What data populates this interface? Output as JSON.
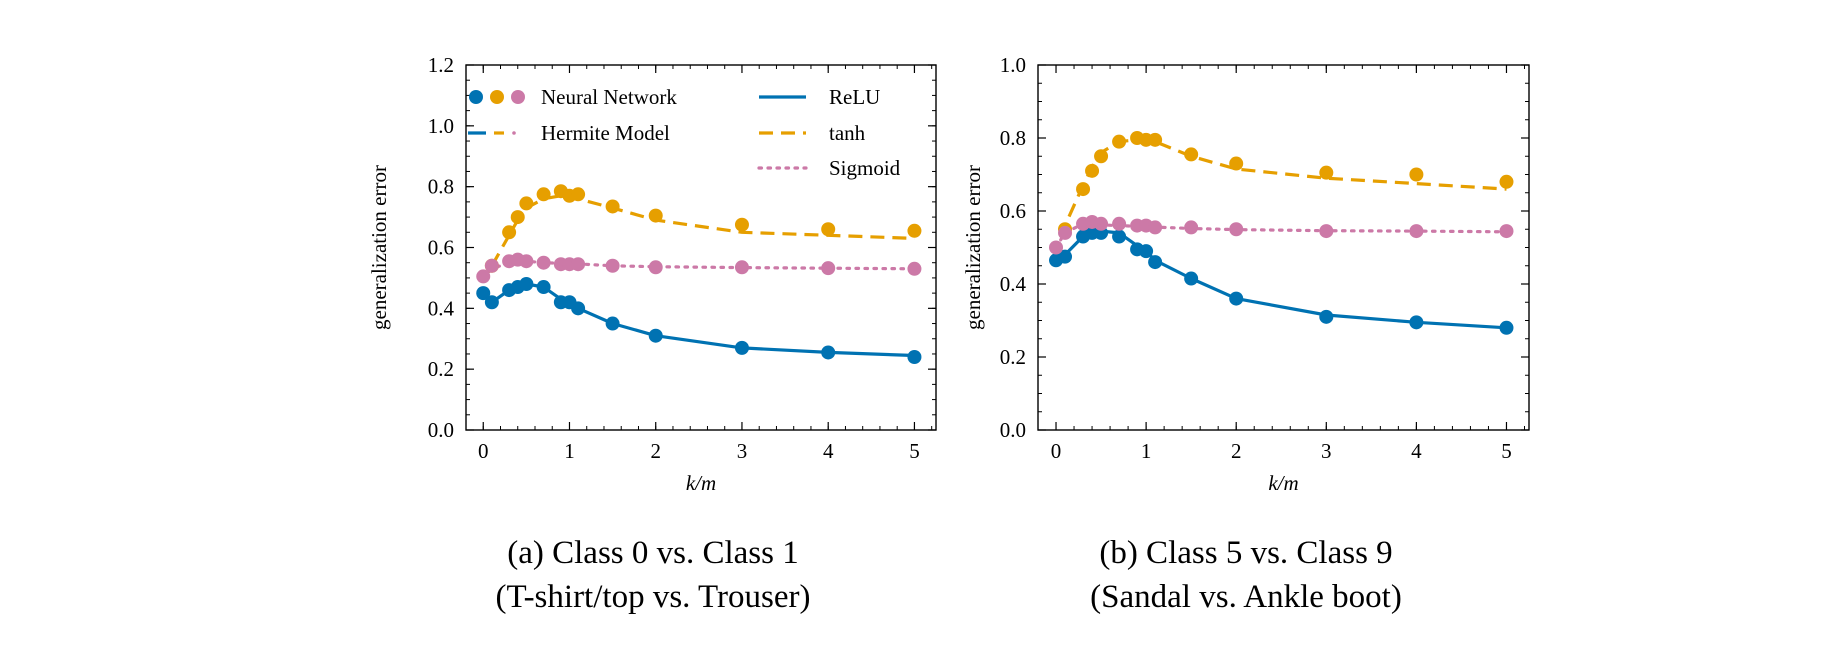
{
  "chart_data": [
    {
      "type": "line",
      "caption": [
        "(a) Class 0 vs. Class 1",
        "(T-shirt/top vs. Trouser)"
      ],
      "xlabel": "k/m",
      "ylabel": "generalization error",
      "xlim": [
        -0.2,
        5.25
      ],
      "ylim": [
        0.0,
        1.2
      ],
      "xticks": [
        0,
        1,
        2,
        3,
        4,
        5
      ],
      "yticks": [
        0.0,
        0.2,
        0.4,
        0.6,
        0.8,
        1.0,
        1.2
      ],
      "ytick_labels": [
        "0.0",
        "0.2",
        "0.4",
        "0.6",
        "0.8",
        "1.0",
        "1.2"
      ],
      "grid": false,
      "legend": {
        "placement": "top",
        "entries": [
          {
            "label": "Neural Network",
            "kind": "markers"
          },
          {
            "label": "Hermite Model",
            "kind": "dashdot"
          },
          {
            "label": "ReLU",
            "kind": "solid",
            "color": "#0072b2"
          },
          {
            "label": "tanh",
            "kind": "dashed",
            "color": "#e69f00"
          },
          {
            "label": "Sigmoid",
            "kind": "dotted",
            "color": "#cc79a7"
          }
        ]
      },
      "series": [
        {
          "name": "ReLU",
          "color": "#0072b2",
          "style": "solid",
          "model_x": [
            0,
            0.1,
            0.3,
            0.4,
            0.5,
            0.7,
            0.9,
            1.0,
            1.1,
            1.5,
            2,
            3,
            4,
            5
          ],
          "model_y": [
            0.45,
            0.42,
            0.46,
            0.47,
            0.48,
            0.47,
            0.43,
            0.42,
            0.4,
            0.35,
            0.31,
            0.27,
            0.255,
            0.245
          ],
          "nn_x": [
            0,
            0.1,
            0.3,
            0.4,
            0.5,
            0.7,
            0.9,
            1.0,
            1.1,
            1.5,
            2,
            3,
            4,
            5
          ],
          "nn_y": [
            0.45,
            0.42,
            0.46,
            0.47,
            0.48,
            0.47,
            0.42,
            0.42,
            0.4,
            0.35,
            0.31,
            0.27,
            0.255,
            0.24
          ]
        },
        {
          "name": "tanh",
          "color": "#e69f00",
          "style": "dashed",
          "model_x": [
            0.1,
            0.3,
            0.4,
            0.5,
            0.7,
            0.9,
            1.0,
            1.1,
            1.5,
            2,
            3,
            4,
            5
          ],
          "model_y": [
            0.54,
            0.64,
            0.69,
            0.73,
            0.76,
            0.77,
            0.765,
            0.76,
            0.73,
            0.69,
            0.65,
            0.64,
            0.63
          ],
          "nn_x": [
            0.1,
            0.3,
            0.4,
            0.5,
            0.7,
            0.9,
            1.0,
            1.1,
            1.5,
            2,
            3,
            4,
            5
          ],
          "nn_y": [
            0.54,
            0.65,
            0.7,
            0.745,
            0.775,
            0.785,
            0.77,
            0.775,
            0.735,
            0.705,
            0.675,
            0.66,
            0.655
          ]
        },
        {
          "name": "Sigmoid",
          "color": "#cc79a7",
          "style": "dotted",
          "model_x": [
            0,
            0.1,
            0.3,
            0.4,
            0.5,
            0.7,
            0.9,
            1.0,
            1.1,
            1.5,
            2,
            3,
            4,
            5
          ],
          "model_y": [
            0.5,
            0.53,
            0.55,
            0.555,
            0.555,
            0.55,
            0.548,
            0.547,
            0.546,
            0.54,
            0.537,
            0.534,
            0.532,
            0.53
          ],
          "nn_x": [
            0,
            0.1,
            0.3,
            0.4,
            0.5,
            0.7,
            0.9,
            1.0,
            1.1,
            1.5,
            2,
            3,
            4,
            5
          ],
          "nn_y": [
            0.505,
            0.54,
            0.555,
            0.56,
            0.555,
            0.55,
            0.545,
            0.545,
            0.545,
            0.54,
            0.535,
            0.535,
            0.532,
            0.53
          ]
        }
      ]
    },
    {
      "type": "line",
      "caption": [
        "(b) Class 5 vs. Class 9",
        "(Sandal vs. Ankle boot)"
      ],
      "xlabel": "k/m",
      "ylabel": "generalization error",
      "xlim": [
        -0.2,
        5.25
      ],
      "ylim": [
        0.0,
        1.0
      ],
      "xticks": [
        0,
        1,
        2,
        3,
        4,
        5
      ],
      "yticks": [
        0.0,
        0.2,
        0.4,
        0.6,
        0.8,
        1.0
      ],
      "ytick_labels": [
        "0.0",
        "0.2",
        "0.4",
        "0.6",
        "0.8",
        "1.0"
      ],
      "grid": false,
      "series": [
        {
          "name": "ReLU",
          "color": "#0072b2",
          "style": "solid",
          "model_x": [
            0,
            0.1,
            0.3,
            0.4,
            0.5,
            0.7,
            0.9,
            1.0,
            1.1,
            1.5,
            2,
            3,
            4,
            5
          ],
          "model_y": [
            0.47,
            0.48,
            0.53,
            0.54,
            0.545,
            0.54,
            0.505,
            0.49,
            0.465,
            0.415,
            0.36,
            0.315,
            0.295,
            0.28
          ],
          "nn_x": [
            0,
            0.1,
            0.3,
            0.4,
            0.5,
            0.7,
            0.9,
            1.0,
            1.1,
            1.5,
            2,
            3,
            4,
            5
          ],
          "nn_y": [
            0.465,
            0.475,
            0.53,
            0.54,
            0.54,
            0.53,
            0.495,
            0.49,
            0.46,
            0.415,
            0.36,
            0.31,
            0.295,
            0.28
          ]
        },
        {
          "name": "tanh",
          "color": "#e69f00",
          "style": "dashed",
          "model_x": [
            0,
            0.1,
            0.3,
            0.4,
            0.5,
            0.7,
            0.9,
            1.0,
            1.1,
            1.5,
            2,
            3,
            4,
            5
          ],
          "model_y": [
            0.47,
            0.56,
            0.67,
            0.72,
            0.76,
            0.79,
            0.795,
            0.795,
            0.79,
            0.75,
            0.715,
            0.69,
            0.675,
            0.66
          ],
          "nn_x": [
            0.1,
            0.3,
            0.4,
            0.5,
            0.7,
            0.9,
            1.0,
            1.1,
            1.5,
            2,
            3,
            4,
            5
          ],
          "nn_y": [
            0.55,
            0.66,
            0.71,
            0.75,
            0.79,
            0.8,
            0.795,
            0.795,
            0.755,
            0.73,
            0.705,
            0.7,
            0.68
          ]
        },
        {
          "name": "Sigmoid",
          "color": "#cc79a7",
          "style": "dotted",
          "model_x": [
            0,
            0.1,
            0.3,
            0.4,
            0.5,
            0.7,
            0.9,
            1.0,
            1.1,
            1.5,
            2,
            3,
            4,
            5
          ],
          "model_y": [
            0.5,
            0.54,
            0.565,
            0.565,
            0.562,
            0.56,
            0.558,
            0.557,
            0.556,
            0.552,
            0.549,
            0.546,
            0.545,
            0.543
          ],
          "nn_x": [
            0,
            0.1,
            0.3,
            0.4,
            0.5,
            0.7,
            0.9,
            1.0,
            1.1,
            1.5,
            2,
            3,
            4,
            5
          ],
          "nn_y": [
            0.5,
            0.54,
            0.565,
            0.57,
            0.565,
            0.565,
            0.56,
            0.56,
            0.555,
            0.555,
            0.55,
            0.545,
            0.545,
            0.545
          ]
        }
      ]
    }
  ]
}
